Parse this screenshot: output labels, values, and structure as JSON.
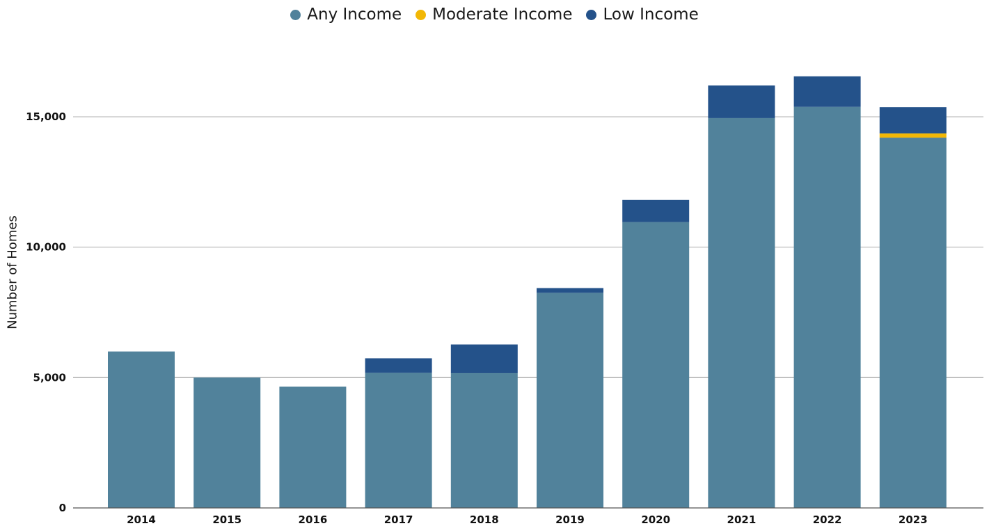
{
  "chart_data": {
    "type": "bar",
    "stacked": true,
    "title": "",
    "xlabel": "",
    "ylabel": "Number of Homes",
    "ylim": [
      0,
      17000
    ],
    "yticks": [
      0,
      5000,
      10000,
      15000
    ],
    "ytick_labels": [
      "0",
      "5,000",
      "10,000",
      "15,000"
    ],
    "grid": "horizontal",
    "legend_position": "top-center",
    "categories": [
      "2014",
      "2015",
      "2016",
      "2017",
      "2018",
      "2019",
      "2020",
      "2021",
      "2022",
      "2023"
    ],
    "series": [
      {
        "name": "Any Income",
        "color": "#51829b",
        "values": [
          6000,
          5000,
          4650,
          5180,
          5170,
          8250,
          10960,
          14950,
          15380,
          14200
        ]
      },
      {
        "name": "Moderate Income",
        "color": "#f2b705",
        "values": [
          0,
          0,
          0,
          0,
          0,
          0,
          0,
          0,
          0,
          160
        ]
      },
      {
        "name": "Low Income",
        "color": "#24528a",
        "values": [
          0,
          0,
          0,
          560,
          1100,
          180,
          850,
          1250,
          1170,
          1010
        ]
      }
    ]
  }
}
